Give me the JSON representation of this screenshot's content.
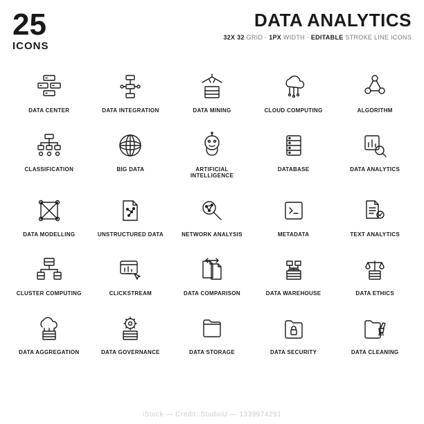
{
  "header": {
    "count": "25",
    "count_label": "ICONS",
    "title": "DATA ANALYTICS",
    "grid_spec": "32X 32",
    "grid_word": "GRID",
    "width_spec": "1PX",
    "width_word": "WIDTH",
    "editable": "EDITABLE",
    "stroke_desc": "STROKE LINE ICONS"
  },
  "icons": [
    {
      "label": "DATA CENTER",
      "name": "data-center-icon"
    },
    {
      "label": "DATA INTEGRATION",
      "name": "data-integration-icon"
    },
    {
      "label": "DATA MINING",
      "name": "data-mining-icon"
    },
    {
      "label": "CLOUD COMPUTING",
      "name": "cloud-computing-icon"
    },
    {
      "label": "ALGORITHM",
      "name": "algorithm-icon"
    },
    {
      "label": "CLASSIFICATION",
      "name": "classification-icon"
    },
    {
      "label": "BIG DATA",
      "name": "big-data-icon"
    },
    {
      "label": "ARTIFICIAL INTELLIGENCE",
      "name": "artificial-intelligence-icon"
    },
    {
      "label": "DATABASE",
      "name": "database-icon"
    },
    {
      "label": "DATA ANALYTICS",
      "name": "data-analytics-icon"
    },
    {
      "label": "DATA MODELLING",
      "name": "data-modelling-icon"
    },
    {
      "label": "UNSTRUCTURED DATA",
      "name": "unstructured-data-icon"
    },
    {
      "label": "NETWORK ANALYSIS",
      "name": "network-analysis-icon"
    },
    {
      "label": "METADATA",
      "name": "metadata-icon"
    },
    {
      "label": "TEXT ANALYTICS",
      "name": "text-analytics-icon"
    },
    {
      "label": "CLUSTER COMPUTING",
      "name": "cluster-computing-icon"
    },
    {
      "label": "CLICKSTREAM",
      "name": "clickstream-icon"
    },
    {
      "label": "DATA COMPARISON",
      "name": "data-comparison-icon"
    },
    {
      "label": "DATA WAREHOUSE",
      "name": "data-warehouse-icon"
    },
    {
      "label": "DATA ETHICS",
      "name": "data-ethics-icon"
    },
    {
      "label": "DATA AGGREGATION",
      "name": "data-aggregation-icon"
    },
    {
      "label": "DATA GOVERNANCE",
      "name": "data-governance-icon"
    },
    {
      "label": "DATA STORAGE",
      "name": "data-storage-icon"
    },
    {
      "label": "DATA SECURITY",
      "name": "data-security-icon"
    },
    {
      "label": "DATA CLEANING",
      "name": "data-cleaning-icon"
    }
  ],
  "style": {
    "cols": 5,
    "rows": 5,
    "icon_stroke": "#1a1a1a",
    "stroke_width": 1.4,
    "label_fontsize": 8,
    "label_weight": 700,
    "title_fontsize": 26,
    "count_fontsize": 44,
    "bg": "#ffffff",
    "text": "#1a1a1a",
    "muted": "#777777"
  },
  "watermark": "iStock — Credit: StudioU — 1339974291"
}
